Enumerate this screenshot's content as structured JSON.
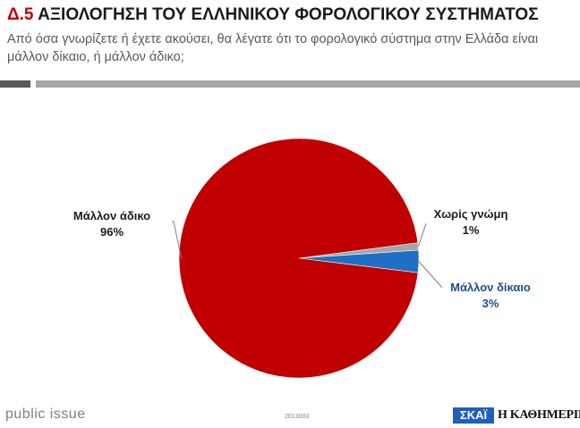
{
  "header": {
    "code": "Δ.5",
    "title": "ΑΞΙΟΛΟΓΗΣΗ ΤΟΥ ΕΛΛΗΝΙΚΟΥ ΦΟΡΟΛΟΓΙΚΟΥ ΣΥΣΤΗΜΑΤΟΣ",
    "question": "Από όσα γνωρίζετε ή έχετε ακούσει, θα λέγατε ότι το φορολογικό σύστημα στην Ελλάδα είναι μάλλον δίκαιο, ή μάλλον άδικο;"
  },
  "chart_data": {
    "type": "pie",
    "title": "",
    "slices": [
      {
        "label": "Χωρίς γνώμη",
        "value": 1,
        "value_label": "1%",
        "color": "#a6a6a6"
      },
      {
        "label": "Μάλλον δίκαιο",
        "value": 3,
        "value_label": "3%",
        "color": "#1f6fc5"
      },
      {
        "label": "Μάλλον άδικο",
        "value": 96,
        "value_label": "96%",
        "color": "#c00000"
      }
    ]
  },
  "footer": {
    "brand": "public issue",
    "ref_code": "2013003",
    "logo_skai": "ΣΚΑΪ",
    "logo_kathimerini": "Η ΚΑΘΗΜΕΡΙΝΗ"
  },
  "colors": {
    "accent_red": "#c00000",
    "rule_dark": "#595959",
    "rule_light": "#a6a6a6"
  }
}
